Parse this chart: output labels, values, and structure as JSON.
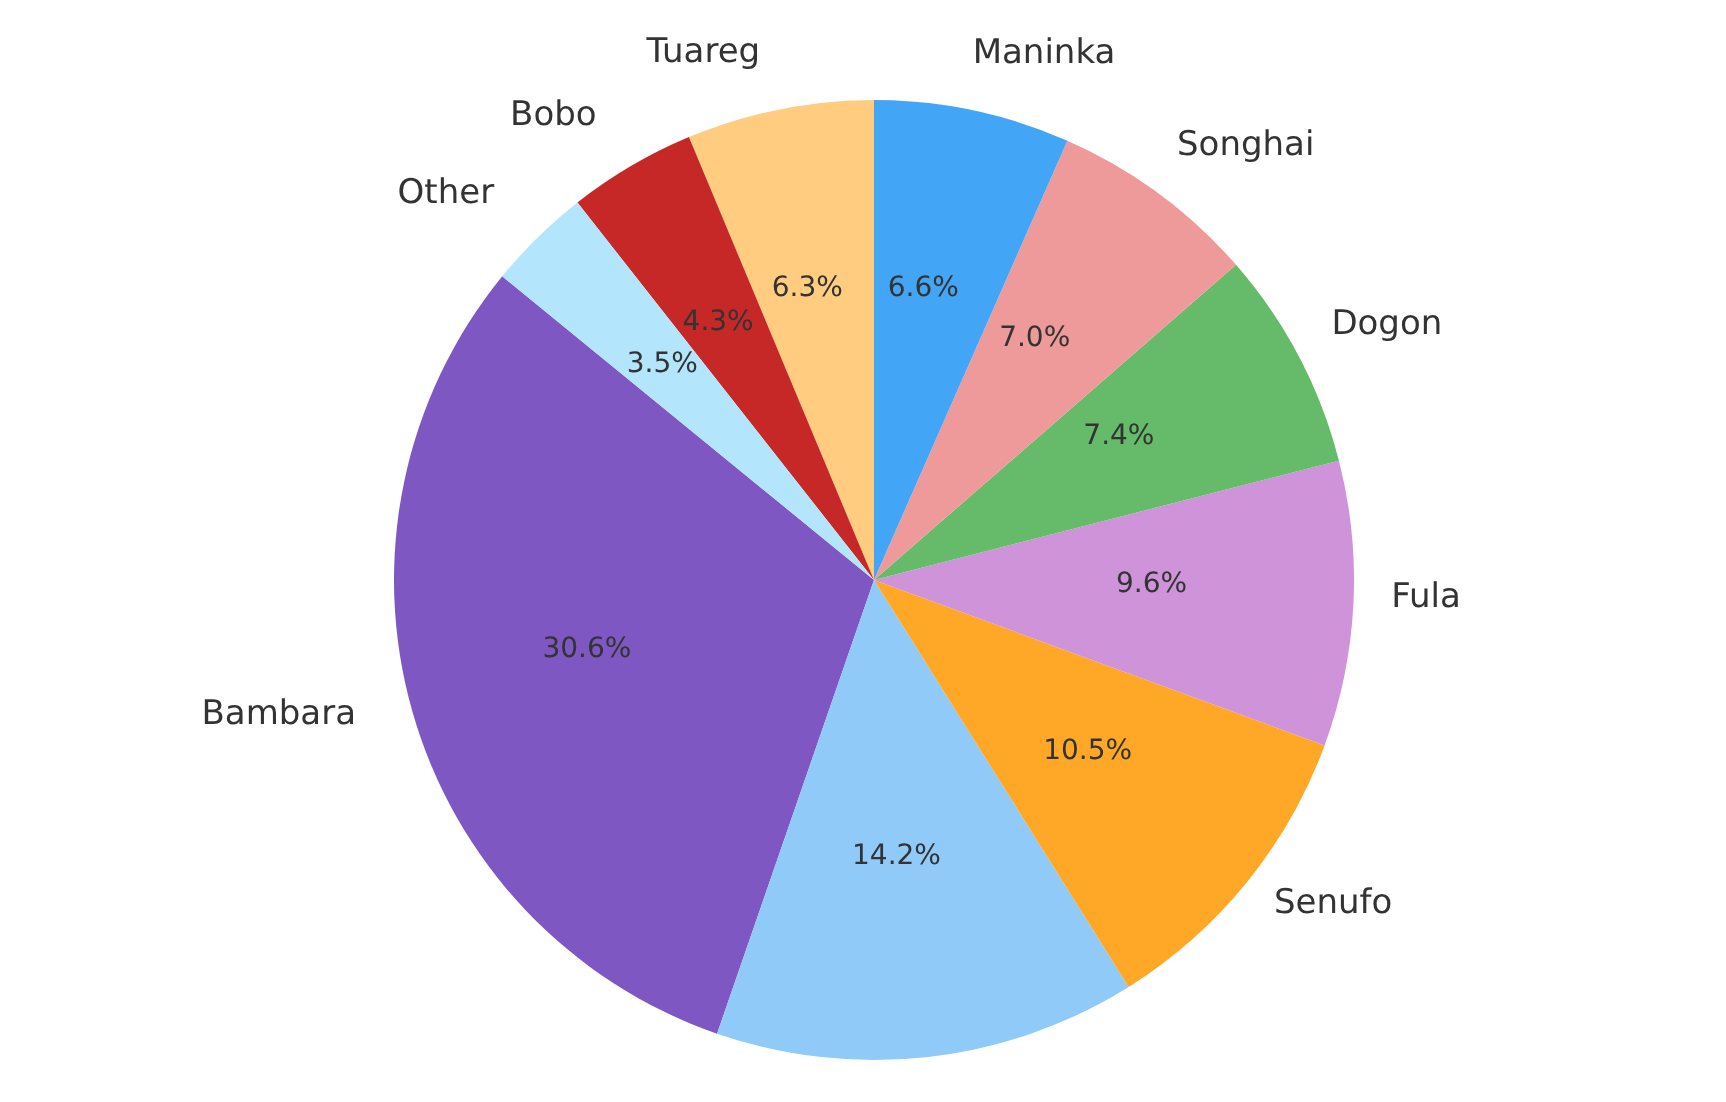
{
  "chart_data": {
    "type": "pie",
    "categories": [
      "Bambara",
      null,
      "Senufo",
      "Fula",
      "Dogon",
      "Songhai",
      "Maninka",
      "Tuareg",
      "Bobo",
      "Other"
    ],
    "values": [
      30.6,
      14.2,
      10.5,
      9.6,
      7.4,
      7.0,
      6.6,
      6.3,
      4.3,
      3.5
    ],
    "value_labels": [
      "30.6%",
      "14.2%",
      "10.5%",
      "9.6%",
      "7.4%",
      "7.0%",
      "6.6%",
      "6.3%",
      "4.3%",
      "3.5%"
    ],
    "colors": [
      "#7e57c2",
      "#90caf9",
      "#ffa726",
      "#ce93d8",
      "#66bb6a",
      "#ef9a9a",
      "#42a5f5",
      "#ffcc80",
      "#c62828",
      "#b3e5fc"
    ],
    "legend": false
  }
}
